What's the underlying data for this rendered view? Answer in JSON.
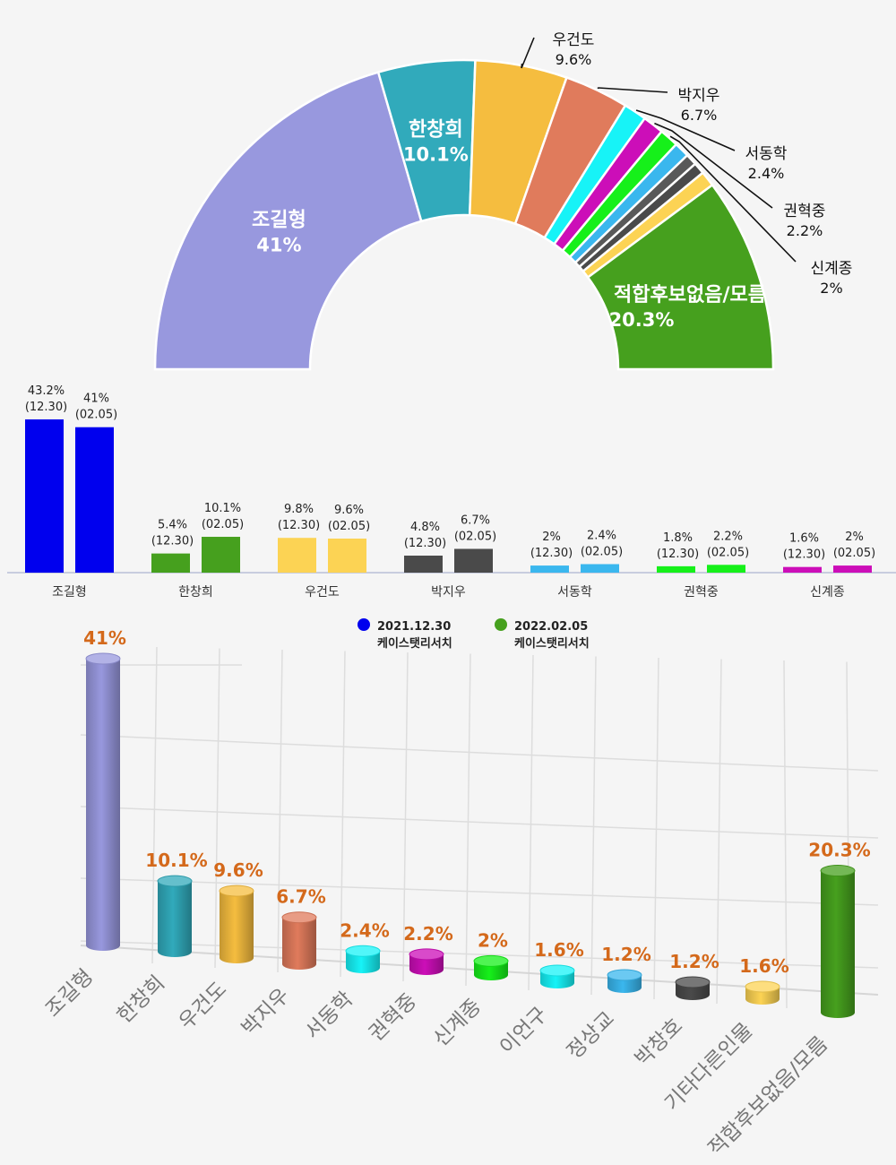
{
  "colors": {
    "background": "#f5f5f5",
    "white": "#ffffff",
    "orange_label": "#d4691b",
    "blue_series": "#0000ee",
    "green_series": "#46a01e",
    "leader_line": "#111111",
    "axis_line": "#b9c0d8",
    "grid_3d": "#dddddd"
  },
  "chart_data": [
    {
      "type": "pie",
      "subtype": "half-donut",
      "title": "",
      "slices": [
        {
          "label": "조길형",
          "value": 41,
          "value_label": "41%",
          "color": "#9898de",
          "label_style": "inside"
        },
        {
          "label": "한창희",
          "value": 10.1,
          "value_label": "10.1%",
          "color": "#31aabb",
          "label_style": "inside"
        },
        {
          "label": "우건도",
          "value": 9.6,
          "value_label": "9.6%",
          "color": "#f5bd3f",
          "label_style": "callout"
        },
        {
          "label": "박지우",
          "value": 6.7,
          "value_label": "6.7%",
          "color": "#e07b5c",
          "label_style": "callout"
        },
        {
          "label": "서동학",
          "value": 2.4,
          "value_label": "2.4%",
          "color": "#17f3f7",
          "label_style": "callout"
        },
        {
          "label": "권혁중",
          "value": 2.2,
          "value_label": "2.2%",
          "color": "#cc0eb8",
          "label_style": "callout"
        },
        {
          "label": "신계종",
          "value": 2,
          "value_label": "2%",
          "color": "#16f01a",
          "label_style": "callout"
        },
        {
          "label": "",
          "value": 1.6,
          "value_label": "",
          "color": "#3ab7ee",
          "label_style": "none"
        },
        {
          "label": "",
          "value": 1.2,
          "value_label": "",
          "color": "#595959",
          "label_style": "none"
        },
        {
          "label": "",
          "value": 1.2,
          "value_label": "",
          "color": "#4a4a4a",
          "label_style": "none"
        },
        {
          "label": "",
          "value": 1.6,
          "value_label": "",
          "color": "#fcd354",
          "label_style": "none"
        },
        {
          "label": "적합후보없음/모름",
          "value": 20.3,
          "value_label": "20.3%",
          "color": "#46a01e",
          "label_style": "inside"
        }
      ]
    },
    {
      "type": "bar",
      "title": "",
      "categories": [
        "조길형",
        "한창희",
        "우건도",
        "박지우",
        "서동학",
        "권혁중",
        "신계종"
      ],
      "series": [
        {
          "name": "2021.12.30 케이스탯리서치",
          "date_label": "(12.30)",
          "values": [
            43.2,
            5.4,
            9.8,
            4.8,
            2,
            1.8,
            1.6
          ],
          "value_labels": [
            "43.2%",
            "5.4%",
            "9.8%",
            "4.8%",
            "2%",
            "1.8%",
            "1.6%"
          ]
        },
        {
          "name": "2022.02.05 케이스탯리서치",
          "date_label": "(02.05)",
          "values": [
            41,
            10.1,
            9.6,
            6.7,
            2.4,
            2.2,
            2
          ],
          "value_labels": [
            "41%",
            "10.1%",
            "9.6%",
            "6.7%",
            "2.4%",
            "2.2%",
            "2%"
          ]
        }
      ],
      "category_colors": [
        "#0000ee",
        "#46a01e",
        "#fcd354",
        "#4a4a4a",
        "#3ab7ee",
        "#16f01a",
        "#cc0eb8"
      ],
      "legend": [
        {
          "date": "2021.12.30",
          "source": "케이스탯리서치",
          "color": "#0000ee"
        },
        {
          "date": "2022.02.05",
          "source": "케이스탯리서치",
          "color": "#46a01e"
        }
      ],
      "legend_position": "bottom",
      "ylim": [
        0,
        45
      ],
      "grid": false
    },
    {
      "type": "bar",
      "subtype": "3d-cylinder",
      "title": "",
      "categories": [
        "조길형",
        "한창희",
        "우건도",
        "박지우",
        "서동학",
        "권혁중",
        "신계종",
        "이언구",
        "정상교",
        "박창호",
        "기타다른인물",
        "적합후보없음/모름"
      ],
      "values": [
        41,
        10.1,
        9.6,
        6.7,
        2.4,
        2.2,
        2,
        1.6,
        1.2,
        1.2,
        1.6,
        20.3
      ],
      "value_labels": [
        "41%",
        "10.1%",
        "9.6%",
        "6.7%",
        "2.4%",
        "2.2%",
        "2%",
        "1.6%",
        "1.2%",
        "1.2%",
        "1.6%",
        "20.3%"
      ],
      "colors": [
        "#9898de",
        "#31aabb",
        "#f5bd3f",
        "#e07b5c",
        "#17f3f7",
        "#cc0eb8",
        "#16f01a",
        "#17f3f7",
        "#3ab7ee",
        "#4a4a4a",
        "#fcd354",
        "#46a01e"
      ],
      "ylim": [
        0,
        45
      ],
      "grid": true
    }
  ]
}
